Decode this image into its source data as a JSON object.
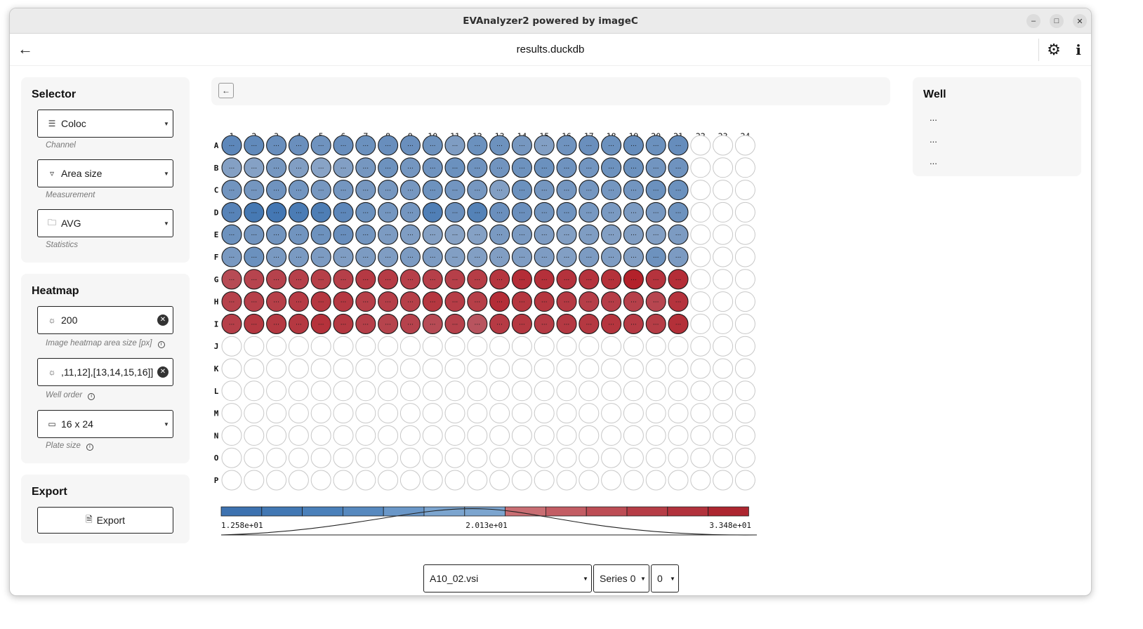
{
  "window": {
    "title": "EVAnalyzer2 powered by imageC"
  },
  "appbar": {
    "file_title": "results.duckdb"
  },
  "selector": {
    "title": "Selector",
    "channel": {
      "value": "Coloc",
      "hint": "Channel",
      "icon": "layers-icon"
    },
    "measurement": {
      "value": "Area size",
      "hint": "Measurement",
      "icon": "filter-icon"
    },
    "statistics": {
      "value": "AVG",
      "hint": "Statistics",
      "icon": "folder-icon"
    }
  },
  "heatmap": {
    "title": "Heatmap",
    "area_size": {
      "value": "200",
      "hint": "Image heatmap area size [px]",
      "icon": "lightbulb-icon"
    },
    "well_order": {
      "value": ",11,12],[13,14,15,16]]",
      "hint": "Well order",
      "icon": "lightbulb-icon"
    },
    "plate_size": {
      "value": "16 x 24",
      "hint": "Plate size",
      "icon": "rectangle-icon"
    }
  },
  "export": {
    "title": "Export",
    "button_label": "Export"
  },
  "well_panel": {
    "title": "Well",
    "rows": [
      "...",
      "...",
      "..."
    ]
  },
  "bottom": {
    "file": "A10_02.vsi",
    "series": "Series 0",
    "index": "0"
  },
  "chart_data": {
    "type": "heatmap",
    "columns": [
      "1",
      "2",
      "3",
      "4",
      "5",
      "6",
      "7",
      "8",
      "9",
      "10",
      "11",
      "12",
      "13",
      "14",
      "15",
      "16",
      "17",
      "18",
      "19",
      "20",
      "21",
      "22",
      "23",
      "24"
    ],
    "rows": [
      "A",
      "B",
      "C",
      "D",
      "E",
      "F",
      "G",
      "H",
      "I",
      "J",
      "K",
      "L",
      "M",
      "N",
      "O",
      "P"
    ],
    "filled_rows": 9,
    "filled_columns": 21,
    "scale": {
      "min_label": "1.258e+01",
      "mid_label": "2.013e+01",
      "max_label": "3.348e+01",
      "min": 12.58,
      "mid": 20.13,
      "max": 33.48
    },
    "colors": {
      "low": "#2f6aad",
      "mid": "#c4c9d6",
      "high": "#b3212a"
    },
    "legend_bins": [
      "#3d72b0",
      "#4278b4",
      "#4a80ba",
      "#5789bf",
      "#6a97c8",
      "#7ca5cf",
      "#7ca5cf",
      "#c96e73",
      "#c35d64",
      "#bd4d55",
      "#b63d46",
      "#b2323c",
      "#ad2630"
    ],
    "values": [
      [
        14.2,
        14.4,
        14.8,
        14.9,
        15.2,
        14.8,
        15.0,
        14.8,
        14.9,
        15.1,
        16.2,
        15.0,
        15.1,
        15.6,
        16.4,
        15.2,
        14.9,
        15.0,
        14.7,
        15.0,
        14.7
      ],
      [
        16.5,
        16.6,
        15.6,
        16.3,
        16.8,
        16.4,
        15.6,
        15.1,
        15.5,
        15.2,
        15.0,
        15.2,
        15.3,
        15.1,
        15.0,
        15.2,
        15.4,
        15.1,
        15.0,
        15.4,
        15.2
      ],
      [
        15.3,
        15.5,
        15.2,
        15.4,
        15.6,
        15.5,
        15.6,
        15.6,
        15.6,
        15.1,
        15.4,
        15.6,
        16.4,
        15.0,
        15.5,
        15.5,
        15.5,
        15.5,
        15.4,
        15.0,
        15.0
      ],
      [
        13.9,
        13.2,
        13.1,
        13.4,
        13.5,
        14.2,
        15.0,
        15.5,
        15.5,
        13.6,
        14.9,
        13.8,
        14.9,
        14.9,
        15.3,
        15.2,
        15.7,
        15.9,
        16.0,
        15.7,
        15.1
      ],
      [
        15.1,
        15.3,
        15.3,
        15.3,
        15.1,
        14.8,
        15.4,
        16.0,
        16.2,
        16.5,
        16.7,
        16.6,
        15.9,
        15.9,
        16.1,
        16.4,
        16.2,
        16.4,
        16.3,
        16.4,
        16.0
      ],
      [
        15.8,
        15.0,
        15.8,
        15.9,
        16.0,
        16.2,
        16.0,
        16.2,
        16.0,
        16.0,
        16.4,
        16.4,
        16.3,
        16.2,
        16.1,
        16.4,
        16.0,
        16.2,
        16.3,
        15.1,
        16.0
      ],
      [
        26.5,
        27.5,
        27.8,
        28.1,
        28.3,
        28.2,
        29.1,
        28.8,
        28.2,
        28.2,
        28.2,
        28.6,
        29.6,
        31.0,
        30.5,
        30.2,
        30.0,
        30.4,
        33.4,
        30.0,
        31.0
      ],
      [
        27.9,
        28.2,
        28.3,
        29.0,
        29.5,
        29.4,
        28.3,
        28.4,
        28.3,
        29.5,
        28.7,
        28.3,
        31.0,
        29.6,
        29.6,
        29.1,
        28.4,
        28.5,
        28.1,
        27.2,
        30.0
      ],
      [
        28.2,
        29.3,
        29.2,
        29.3,
        30.3,
        29.3,
        28.2,
        27.6,
        27.8,
        26.5,
        27.9,
        25.3,
        29.0,
        29.3,
        28.8,
        29.1,
        29.3,
        29.8,
        29.0,
        28.6,
        30.6
      ]
    ]
  }
}
